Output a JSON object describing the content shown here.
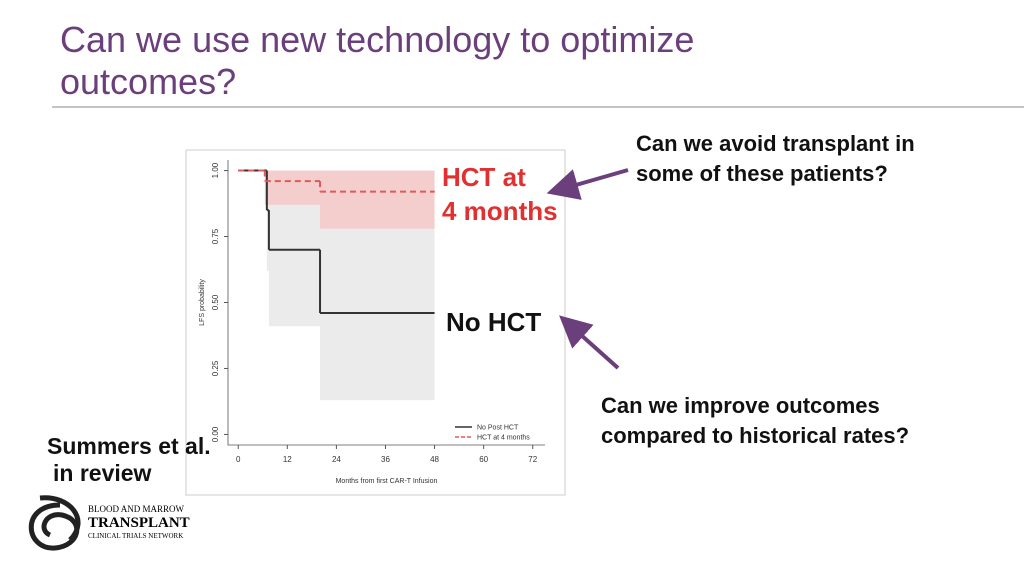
{
  "title": "Can we use new technology to optimize outcomes?",
  "callouts": [
    {
      "lines": [
        "Can we avoid transplant in",
        "some of these patients?"
      ]
    },
    {
      "lines": [
        "Can we improve outcomes",
        "compared to historical rates?"
      ]
    }
  ],
  "citation": [
    "Summers et al.",
    "in review"
  ],
  "logo": [
    "BLOOD AND MARROW",
    "TRANSPLANT",
    "CLINICAL TRIALS NETWORK"
  ],
  "chart_data": {
    "type": "step",
    "x_label": "Months from first CAR-T Infusion",
    "y_label": "LFS probability",
    "xlim": [
      -2.5,
      75
    ],
    "ylim": [
      -0.04,
      1.04
    ],
    "xticks": [
      0,
      12,
      24,
      36,
      48,
      60,
      72
    ],
    "yticks": [
      {
        "value": 0,
        "label": "0.00"
      },
      0.25,
      {
        "value": 0.5,
        "label": "0.50"
      },
      0.75,
      {
        "value": 1,
        "label": "1.00"
      }
    ],
    "legend": "bottom-right",
    "series": [
      {
        "name": "No Post HCT",
        "color": "#333333",
        "dash": false,
        "band_color": "#e6e6e6",
        "x": [
          0,
          7,
          7.5,
          20,
          48
        ],
        "values": [
          1,
          0.85,
          0.7,
          0.46,
          0.46
        ],
        "lower": [
          1,
          0.62,
          0.41,
          0.13,
          0.13
        ],
        "upper": [
          1,
          1,
          1,
          1,
          1
        ]
      },
      {
        "name": "HCT at 4 months",
        "color": "#e05a5a",
        "dash": true,
        "band_color": "#f6c6c6",
        "x": [
          0,
          6.5,
          20,
          48
        ],
        "values": [
          1,
          0.96,
          0.92,
          0.92
        ],
        "lower": [
          1,
          0.87,
          0.78,
          0.78
        ],
        "upper": [
          1,
          1,
          1,
          1
        ]
      }
    ],
    "annotations": [
      "HCT at",
      "4 months",
      "No HCT"
    ]
  }
}
